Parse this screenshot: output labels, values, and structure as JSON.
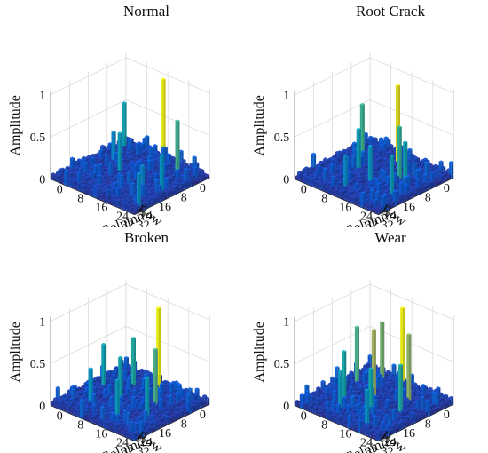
{
  "chart_data": [
    {
      "type": "bar3d",
      "title": "Normal",
      "xlabel": "Row",
      "ylabel": "Column",
      "zlabel": "Amplitude",
      "xticks": [
        "0",
        "8",
        "16",
        "24",
        "32"
      ],
      "yticks": [
        "0",
        "8",
        "16",
        "24",
        "32"
      ],
      "zticks": [
        "0",
        "0.5",
        "1"
      ],
      "xlim": [
        0,
        32
      ],
      "ylim": [
        0,
        32
      ],
      "zlim": [
        0,
        1
      ],
      "colormap": "parula",
      "peaks": [
        {
          "row": 2,
          "col": 16,
          "value": 1.0
        },
        {
          "row": 3,
          "col": 2,
          "value": 0.55
        },
        {
          "row": 6,
          "col": 25,
          "value": 0.68
        },
        {
          "row": 12,
          "col": 6,
          "value": 0.38
        },
        {
          "row": 16,
          "col": 12,
          "value": 0.5
        },
        {
          "row": 16,
          "col": 28,
          "value": 0.45
        },
        {
          "row": 22,
          "col": 26,
          "value": 0.38
        },
        {
          "row": 28,
          "col": 30,
          "value": 0.42
        }
      ]
    },
    {
      "type": "bar3d",
      "title": "Root Crack",
      "xlabel": "Row",
      "ylabel": "Column",
      "zlabel": "Amplitude",
      "xticks": [
        "0",
        "8",
        "16",
        "24",
        "32"
      ],
      "yticks": [
        "0",
        "8",
        "16",
        "24",
        "32"
      ],
      "zticks": [
        "0",
        "0.5",
        "1"
      ],
      "xlim": [
        0,
        32
      ],
      "ylim": [
        0,
        32
      ],
      "zlim": [
        0,
        1
      ],
      "colormap": "parula",
      "peaks": [
        {
          "row": 6,
          "col": 16,
          "value": 0.98
        },
        {
          "row": 10,
          "col": 6,
          "value": 0.68
        },
        {
          "row": 12,
          "col": 22,
          "value": 0.65
        },
        {
          "row": 14,
          "col": 26,
          "value": 0.55
        },
        {
          "row": 16,
          "col": 10,
          "value": 0.52
        },
        {
          "row": 20,
          "col": 18,
          "value": 0.48
        },
        {
          "row": 22,
          "col": 28,
          "value": 0.52
        },
        {
          "row": 26,
          "col": 14,
          "value": 0.4
        }
      ]
    },
    {
      "type": "bar3d",
      "title": "Broken",
      "xlabel": "Row",
      "ylabel": "Column",
      "zlabel": "Amplitude",
      "xticks": [
        "0",
        "8",
        "16",
        "24",
        "32"
      ],
      "yticks": [
        "0",
        "8",
        "16",
        "24",
        "32"
      ],
      "zticks": [
        "0",
        "0.5",
        "1"
      ],
      "xlim": [
        0,
        32
      ],
      "ylim": [
        0,
        32
      ],
      "zlim": [
        0,
        1
      ],
      "colormap": "parula",
      "peaks": [
        {
          "row": 4,
          "col": 16,
          "value": 1.0
        },
        {
          "row": 8,
          "col": 10,
          "value": 0.62
        },
        {
          "row": 12,
          "col": 22,
          "value": 0.7
        },
        {
          "row": 14,
          "col": 4,
          "value": 0.55
        },
        {
          "row": 18,
          "col": 14,
          "value": 0.58
        },
        {
          "row": 20,
          "col": 26,
          "value": 0.52
        },
        {
          "row": 24,
          "col": 8,
          "value": 0.45
        },
        {
          "row": 26,
          "col": 20,
          "value": 0.5
        }
      ]
    },
    {
      "type": "bar3d",
      "title": "Wear",
      "xlabel": "Row",
      "ylabel": "Column",
      "zlabel": "Amplitude",
      "xticks": [
        "0",
        "8",
        "16",
        "24",
        "32"
      ],
      "yticks": [
        "0",
        "8",
        "16",
        "24",
        "32"
      ],
      "zticks": [
        "0",
        "0.5",
        "1"
      ],
      "xlim": [
        0,
        32
      ],
      "ylim": [
        0,
        32
      ],
      "zlim": [
        0,
        1
      ],
      "colormap": "parula",
      "peaks": [
        {
          "row": 4,
          "col": 16,
          "value": 1.0
        },
        {
          "row": 6,
          "col": 10,
          "value": 0.78
        },
        {
          "row": 8,
          "col": 22,
          "value": 0.82
        },
        {
          "row": 10,
          "col": 4,
          "value": 0.7
        },
        {
          "row": 14,
          "col": 14,
          "value": 0.85
        },
        {
          "row": 16,
          "col": 26,
          "value": 0.62
        },
        {
          "row": 20,
          "col": 8,
          "value": 0.6
        },
        {
          "row": 22,
          "col": 20,
          "value": 0.58
        },
        {
          "row": 26,
          "col": 12,
          "value": 0.5
        },
        {
          "row": 28,
          "col": 24,
          "value": 0.46
        }
      ]
    }
  ]
}
